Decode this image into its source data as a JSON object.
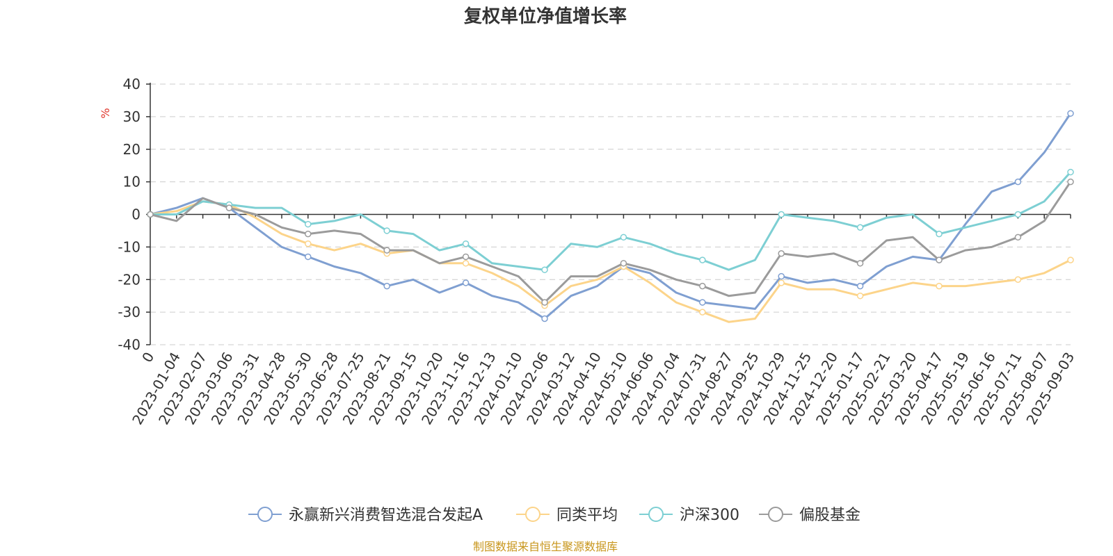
{
  "chart_data": {
    "type": "line",
    "title": "复权单位净值增长率",
    "ylabel": "%",
    "ylim": [
      -40,
      40
    ],
    "yticks": [
      40,
      30,
      20,
      10,
      0,
      -10,
      -20,
      -30,
      -40
    ],
    "grid": true,
    "legend_position": "bottom",
    "categories": [
      "0",
      "2023-01-04",
      "2023-02-07",
      "2023-03-06",
      "2023-03-31",
      "2023-04-28",
      "2023-05-30",
      "2023-06-28",
      "2023-07-25",
      "2023-08-21",
      "2023-09-15",
      "2023-10-20",
      "2023-11-16",
      "2023-12-13",
      "2024-01-10",
      "2024-02-06",
      "2024-03-12",
      "2024-04-10",
      "2024-05-10",
      "2024-06-06",
      "2024-07-04",
      "2024-07-31",
      "2024-08-27",
      "2024-09-25",
      "2024-10-29",
      "2024-11-25",
      "2024-12-20",
      "2025-01-17",
      "2025-02-21",
      "2025-03-20",
      "2025-04-17",
      "2025-05-19",
      "2025-06-16",
      "2025-07-11",
      "2025-08-07",
      "2025-09-03"
    ],
    "series": [
      {
        "name": "永赢新兴消费智选混合发起A",
        "color": "#7f9fd1",
        "values": [
          0,
          2,
          5,
          2,
          -4,
          -10,
          -13,
          -16,
          -18,
          -22,
          -20,
          -24,
          -21,
          -25,
          -27,
          -32,
          -25,
          -22,
          -16,
          -18,
          -24,
          -27,
          -28,
          -29,
          -19,
          -21,
          -20,
          -22,
          -16,
          -13,
          -14,
          -3,
          7,
          10,
          19,
          31
        ]
      },
      {
        "name": "同类平均",
        "color": "#fcd48a",
        "values": [
          0,
          1,
          4,
          3,
          -1,
          -6,
          -9,
          -11,
          -9,
          -12,
          -11,
          -15,
          -15,
          -18,
          -22,
          -28,
          -22,
          -20,
          -16,
          -21,
          -27,
          -30,
          -33,
          -32,
          -21,
          -23,
          -23,
          -25,
          -23,
          -21,
          -22,
          -22,
          -21,
          -20,
          -18,
          -14
        ]
      },
      {
        "name": "沪深300",
        "color": "#7dcfd3",
        "values": [
          0,
          0,
          4,
          3,
          2,
          2,
          -3,
          -2,
          0,
          -5,
          -6,
          -11,
          -9,
          -15,
          -16,
          -17,
          -9,
          -10,
          -7,
          -9,
          -12,
          -14,
          -17,
          -14,
          0,
          -1,
          -2,
          -4,
          -1,
          0,
          -6,
          -4,
          -2,
          0,
          4,
          13
        ]
      },
      {
        "name": "偏股基金",
        "color": "#9b9b9b",
        "values": [
          0,
          -2,
          5,
          2,
          0,
          -4,
          -6,
          -5,
          -6,
          -11,
          -11,
          -15,
          -13,
          -16,
          -19,
          -27,
          -19,
          -19,
          -15,
          -17,
          -20,
          -22,
          -25,
          -24,
          -12,
          -13,
          -12,
          -15,
          -8,
          -7,
          -14,
          -11,
          -10,
          -7,
          -2,
          10
        ]
      }
    ]
  },
  "legend": [
    {
      "label": "永赢新兴消费智选混合发起A",
      "color": "#7f9fd1"
    },
    {
      "label": "同类平均",
      "color": "#fcd48a"
    },
    {
      "label": "沪深300",
      "color": "#7dcfd3"
    },
    {
      "label": "偏股基金",
      "color": "#9b9b9b"
    }
  ],
  "source_text": "制图数据来自恒生聚源数据库"
}
